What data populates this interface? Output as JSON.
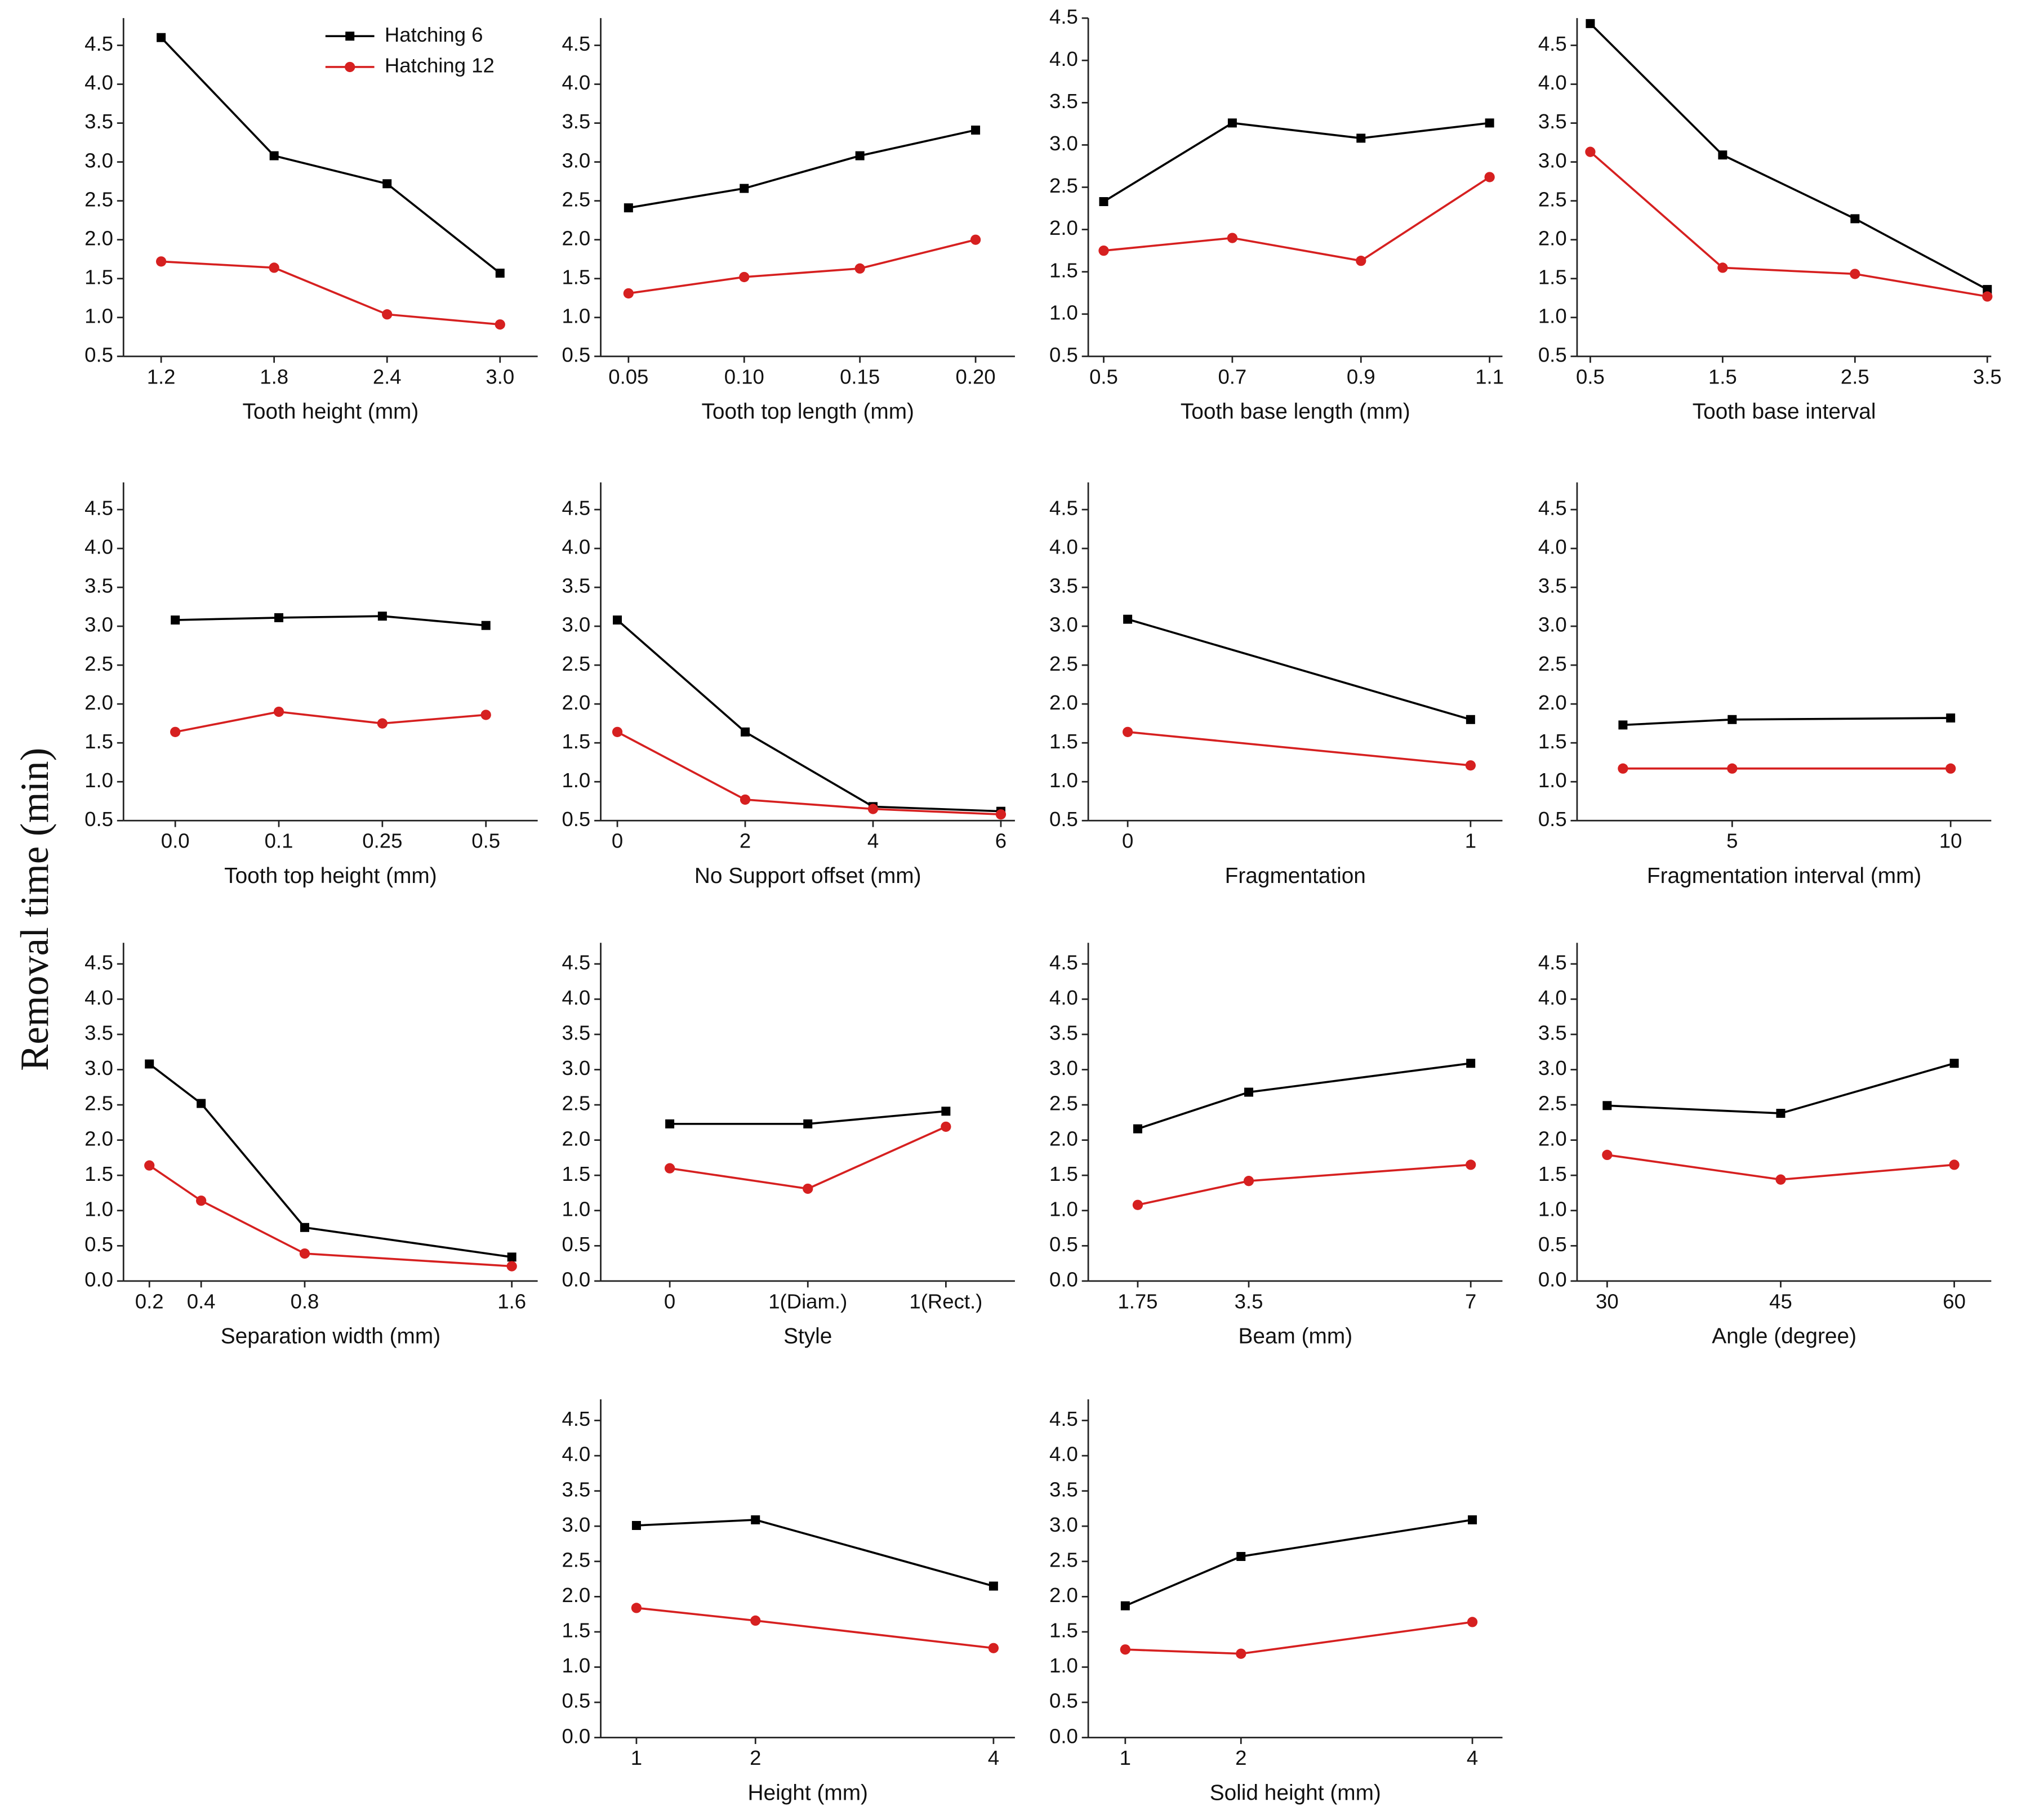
{
  "y_label": "Removal time (min)",
  "chart_data": [
    {
      "type": "line",
      "x_label": "Tooth height (mm)",
      "x": [
        1.2,
        1.8,
        2.4,
        3.0
      ],
      "xlim": [
        1.0,
        3.2
      ],
      "xticks": [
        1.2,
        1.8,
        2.4,
        {
          "value": 3,
          "label": "3.0"
        }
      ],
      "ylim": [
        0.5,
        4.85
      ],
      "yticks": [
        0.5,
        {
          "value": 1,
          "label": "1.0"
        },
        1.5,
        {
          "value": 2,
          "label": "2.0"
        },
        2.5,
        {
          "value": 3,
          "label": "3.0"
        },
        3.5,
        {
          "value": 4,
          "label": "4.0"
        },
        4.5
      ],
      "legend": "upper right",
      "series": [
        {
          "name": "Hatching 6",
          "color": "#000000",
          "marker": "square",
          "values": [
            4.6,
            3.08,
            2.72,
            1.57
          ]
        },
        {
          "name": "Hatching 12",
          "color": "#d62020",
          "marker": "circle",
          "values": [
            1.72,
            1.64,
            1.04,
            0.91
          ]
        }
      ]
    },
    {
      "type": "line",
      "x_label": "Tooth top length (mm)",
      "x": [
        0.05,
        0.1,
        0.15,
        0.2
      ],
      "xlim": [
        0.038,
        0.217
      ],
      "xticks": [
        0.05,
        {
          "value": 0.1,
          "label": "0.10"
        },
        0.15,
        {
          "value": 0.2,
          "label": "0.20"
        }
      ],
      "ylim": [
        0.5,
        4.85
      ],
      "yticks": [
        0.5,
        {
          "value": 1,
          "label": "1.0"
        },
        1.5,
        {
          "value": 2,
          "label": "2.0"
        },
        2.5,
        {
          "value": 3,
          "label": "3.0"
        },
        3.5,
        {
          "value": 4,
          "label": "4.0"
        },
        4.5
      ],
      "series": [
        {
          "color": "#000000",
          "marker": "square",
          "values": [
            2.41,
            2.66,
            3.08,
            3.41
          ]
        },
        {
          "color": "#d62020",
          "marker": "circle",
          "values": [
            1.31,
            1.52,
            1.63,
            2.0
          ]
        }
      ]
    },
    {
      "type": "line",
      "x_label": "Tooth base length (mm)",
      "x": [
        0.5,
        0.7,
        0.9,
        1.1
      ],
      "xlim": [
        0.476,
        1.12
      ],
      "xticks": [
        0.5,
        0.7,
        0.9,
        1.1
      ],
      "ylim": [
        0.5,
        4.5
      ],
      "yticks": [
        0.5,
        {
          "value": 1,
          "label": "1.0"
        },
        1.5,
        {
          "value": 2,
          "label": "2.0"
        },
        2.5,
        {
          "value": 3,
          "label": "3.0"
        },
        3.5,
        {
          "value": 4,
          "label": "4.0"
        },
        4.5
      ],
      "series": [
        {
          "color": "#000000",
          "marker": "square",
          "values": [
            2.33,
            3.26,
            3.08,
            3.26
          ]
        },
        {
          "color": "#d62020",
          "marker": "circle",
          "values": [
            1.75,
            1.9,
            1.63,
            2.62
          ]
        }
      ]
    },
    {
      "type": "line",
      "x_label": "Tooth base interval",
      "x": [
        0.5,
        1.5,
        2.5,
        3.5
      ],
      "xlim": [
        0.4,
        3.53
      ],
      "xticks": [
        0.5,
        1.5,
        2.5,
        3.5
      ],
      "ylim": [
        0.5,
        4.85
      ],
      "yticks": [
        0.5,
        {
          "value": 1,
          "label": "1.0"
        },
        1.5,
        {
          "value": 2,
          "label": "2.0"
        },
        2.5,
        {
          "value": 3,
          "label": "3.0"
        },
        3.5,
        {
          "value": 4,
          "label": "4.0"
        },
        4.5
      ],
      "series": [
        {
          "color": "#000000",
          "marker": "square",
          "values": [
            4.78,
            3.09,
            2.27,
            1.36
          ]
        },
        {
          "color": "#d62020",
          "marker": "circle",
          "values": [
            3.13,
            1.64,
            1.56,
            1.27
          ]
        }
      ]
    },
    {
      "type": "line",
      "x_label": "Tooth top height (mm)",
      "categories": [
        "0.0",
        "0.1",
        "0.25",
        "0.5"
      ],
      "ylim": [
        0.5,
        4.85
      ],
      "yticks": [
        0.5,
        {
          "value": 1,
          "label": "1.0"
        },
        1.5,
        {
          "value": 2,
          "label": "2.0"
        },
        2.5,
        {
          "value": 3,
          "label": "3.0"
        },
        3.5,
        {
          "value": 4,
          "label": "4.0"
        },
        4.5
      ],
      "series": [
        {
          "color": "#000000",
          "marker": "square",
          "values": [
            3.08,
            3.11,
            3.13,
            3.01
          ]
        },
        {
          "color": "#d62020",
          "marker": "circle",
          "values": [
            1.64,
            1.9,
            1.75,
            1.86
          ]
        }
      ]
    },
    {
      "type": "line",
      "x_label": "No Support offset (mm)",
      "x": [
        0,
        2,
        4,
        6
      ],
      "xlim": [
        -0.26,
        6.22
      ],
      "xticks": [
        0,
        2,
        4,
        6
      ],
      "ylim": [
        0.5,
        4.85
      ],
      "yticks": [
        0.5,
        {
          "value": 1,
          "label": "1.0"
        },
        1.5,
        {
          "value": 2,
          "label": "2.0"
        },
        2.5,
        {
          "value": 3,
          "label": "3.0"
        },
        3.5,
        {
          "value": 4,
          "label": "4.0"
        },
        4.5
      ],
      "series": [
        {
          "color": "#000000",
          "marker": "square",
          "values": [
            3.08,
            1.64,
            0.68,
            0.62
          ]
        },
        {
          "color": "#d62020",
          "marker": "circle",
          "values": [
            1.64,
            0.77,
            0.65,
            0.58
          ]
        }
      ]
    },
    {
      "type": "line",
      "x_label": "Fragmentation",
      "x": [
        0,
        1
      ],
      "xlim": [
        -0.115,
        1.093
      ],
      "xticks": [
        0,
        1
      ],
      "ylim": [
        0.5,
        4.85
      ],
      "yticks": [
        0.5,
        {
          "value": 1,
          "label": "1.0"
        },
        1.5,
        {
          "value": 2,
          "label": "2.0"
        },
        2.5,
        {
          "value": 3,
          "label": "3.0"
        },
        3.5,
        {
          "value": 4,
          "label": "4.0"
        },
        4.5
      ],
      "series": [
        {
          "color": "#000000",
          "marker": "square",
          "values": [
            3.09,
            1.8
          ]
        },
        {
          "color": "#d62020",
          "marker": "circle",
          "values": [
            1.64,
            1.21
          ]
        }
      ]
    },
    {
      "type": "line",
      "x_label": "Fragmentation interval (mm)",
      "x": [
        2.5,
        5,
        10
      ],
      "xlim": [
        1.45,
        10.93
      ],
      "xticks": [
        5,
        10
      ],
      "ylim": [
        0.5,
        4.85
      ],
      "yticks": [
        0.5,
        {
          "value": 1,
          "label": "1.0"
        },
        1.5,
        {
          "value": 2,
          "label": "2.0"
        },
        2.5,
        {
          "value": 3,
          "label": "3.0"
        },
        3.5,
        {
          "value": 4,
          "label": "4.0"
        },
        4.5
      ],
      "series": [
        {
          "color": "#000000",
          "marker": "square",
          "values": [
            1.73,
            1.8,
            1.82
          ]
        },
        {
          "color": "#d62020",
          "marker": "circle",
          "values": [
            1.17,
            1.17,
            1.17
          ]
        }
      ]
    },
    {
      "type": "line",
      "x_label": "Separation width (mm)",
      "x": [
        0.2,
        0.4,
        0.8,
        1.6
      ],
      "xlim": [
        0.1,
        1.7
      ],
      "xticks": [
        0.2,
        0.4,
        0.8,
        1.6
      ],
      "ylim": [
        0,
        4.8
      ],
      "yticks": [
        {
          "value": 0,
          "label": "0.0"
        },
        0.5,
        {
          "value": 1,
          "label": "1.0"
        },
        1.5,
        {
          "value": 2,
          "label": "2.0"
        },
        2.5,
        {
          "value": 3,
          "label": "3.0"
        },
        3.5,
        {
          "value": 4,
          "label": "4.0"
        },
        4.5
      ],
      "series": [
        {
          "color": "#000000",
          "marker": "square",
          "values": [
            3.08,
            2.52,
            0.76,
            0.34
          ]
        },
        {
          "color": "#d62020",
          "marker": "circle",
          "values": [
            1.64,
            1.14,
            0.39,
            0.21
          ]
        }
      ]
    },
    {
      "type": "line",
      "x_label": "Style",
      "categories": [
        "0",
        "1(Diam.)",
        "1(Rect.)"
      ],
      "ylim": [
        0,
        4.8
      ],
      "yticks": [
        {
          "value": 0,
          "label": "0.0"
        },
        0.5,
        {
          "value": 1,
          "label": "1.0"
        },
        1.5,
        {
          "value": 2,
          "label": "2.0"
        },
        2.5,
        {
          "value": 3,
          "label": "3.0"
        },
        3.5,
        {
          "value": 4,
          "label": "4.0"
        },
        4.5
      ],
      "series": [
        {
          "color": "#000000",
          "marker": "square",
          "values": [
            2.23,
            2.23,
            2.41
          ]
        },
        {
          "color": "#d62020",
          "marker": "circle",
          "values": [
            1.6,
            1.31,
            2.19
          ]
        }
      ]
    },
    {
      "type": "line",
      "x_label": "Beam (mm)",
      "x": [
        1.75,
        3.5,
        7
      ],
      "xlim": [
        0.97,
        7.5
      ],
      "xticks": [
        1.75,
        3.5,
        7
      ],
      "ylim": [
        0,
        4.8
      ],
      "yticks": [
        {
          "value": 0,
          "label": "0.0"
        },
        0.5,
        {
          "value": 1,
          "label": "1.0"
        },
        1.5,
        {
          "value": 2,
          "label": "2.0"
        },
        2.5,
        {
          "value": 3,
          "label": "3.0"
        },
        3.5,
        {
          "value": 4,
          "label": "4.0"
        },
        4.5
      ],
      "series": [
        {
          "color": "#000000",
          "marker": "square",
          "values": [
            2.16,
            2.68,
            3.09
          ]
        },
        {
          "color": "#d62020",
          "marker": "circle",
          "values": [
            1.08,
            1.42,
            1.65
          ]
        }
      ]
    },
    {
      "type": "line",
      "x_label": "Angle (degree)",
      "x": [
        30,
        45,
        60
      ],
      "xlim": [
        27.4,
        63.2
      ],
      "xticks": [
        30,
        45,
        60
      ],
      "ylim": [
        0,
        4.8
      ],
      "yticks": [
        {
          "value": 0,
          "label": "0.0"
        },
        0.5,
        {
          "value": 1,
          "label": "1.0"
        },
        1.5,
        {
          "value": 2,
          "label": "2.0"
        },
        2.5,
        {
          "value": 3,
          "label": "3.0"
        },
        3.5,
        {
          "value": 4,
          "label": "4.0"
        },
        4.5
      ],
      "series": [
        {
          "color": "#000000",
          "marker": "square",
          "values": [
            2.49,
            2.38,
            3.09
          ]
        },
        {
          "color": "#d62020",
          "marker": "circle",
          "values": [
            1.79,
            1.44,
            1.65
          ]
        }
      ]
    },
    {
      "type": "line",
      "x_label": "Height (mm)",
      "x": [
        1,
        2,
        4
      ],
      "xlim": [
        0.7,
        4.18
      ],
      "xticks": [
        1,
        2,
        4
      ],
      "ylim": [
        0,
        4.8
      ],
      "yticks": [
        {
          "value": 0,
          "label": "0.0"
        },
        0.5,
        {
          "value": 1,
          "label": "1.0"
        },
        1.5,
        {
          "value": 2,
          "label": "2.0"
        },
        2.5,
        {
          "value": 3,
          "label": "3.0"
        },
        3.5,
        {
          "value": 4,
          "label": "4.0"
        },
        4.5
      ],
      "series": [
        {
          "color": "#000000",
          "marker": "square",
          "values": [
            3.01,
            3.09,
            2.15
          ]
        },
        {
          "color": "#d62020",
          "marker": "circle",
          "values": [
            1.84,
            1.66,
            1.27
          ]
        }
      ]
    },
    {
      "type": "line",
      "x_label": "Solid height (mm)",
      "x": [
        1,
        2,
        4
      ],
      "xlim": [
        0.68,
        4.26
      ],
      "xticks": [
        1,
        2,
        4
      ],
      "ylim": [
        0,
        4.8
      ],
      "yticks": [
        {
          "value": 0,
          "label": "0.0"
        },
        0.5,
        {
          "value": 1,
          "label": "1.0"
        },
        1.5,
        {
          "value": 2,
          "label": "2.0"
        },
        2.5,
        {
          "value": 3,
          "label": "3.0"
        },
        3.5,
        {
          "value": 4,
          "label": "4.0"
        },
        4.5
      ],
      "series": [
        {
          "color": "#000000",
          "marker": "square",
          "values": [
            1.87,
            2.57,
            3.09
          ]
        },
        {
          "color": "#d62020",
          "marker": "circle",
          "values": [
            1.25,
            1.19,
            1.64
          ]
        }
      ]
    }
  ]
}
